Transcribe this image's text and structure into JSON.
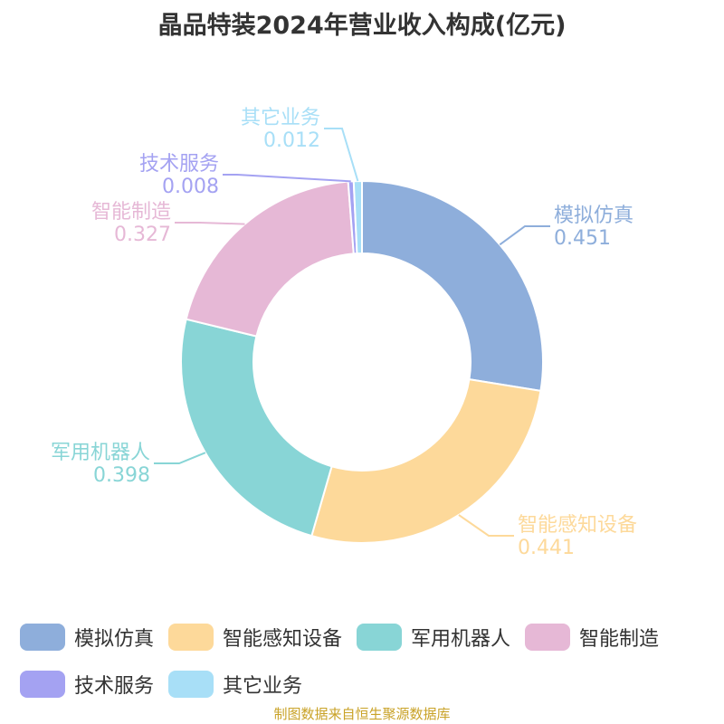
{
  "title": "晶品特装2024年营业收入构成(亿元)",
  "source": "制图数据来自恒生聚源数据库",
  "chart_data": {
    "type": "pie",
    "donut": true,
    "title": "晶品特装2024年营业收入构成(亿元)",
    "legend_position": "bottom",
    "series": [
      {
        "name": "模拟仿真",
        "value": 0.451,
        "value_label": "0.451",
        "color": "#8eaedb"
      },
      {
        "name": "智能感知设备",
        "value": 0.441,
        "value_label": "0.441",
        "color": "#fdd99a"
      },
      {
        "name": "军用机器人",
        "value": 0.398,
        "value_label": "0.398",
        "color": "#88d5d6"
      },
      {
        "name": "智能制造",
        "value": 0.327,
        "value_label": "0.327",
        "color": "#e6b8d6"
      },
      {
        "name": "技术服务",
        "value": 0.008,
        "value_label": "0.008",
        "color": "#a4a2f2"
      },
      {
        "name": "其它业务",
        "value": 0.012,
        "value_label": "0.012",
        "color": "#a8dff7"
      }
    ]
  }
}
